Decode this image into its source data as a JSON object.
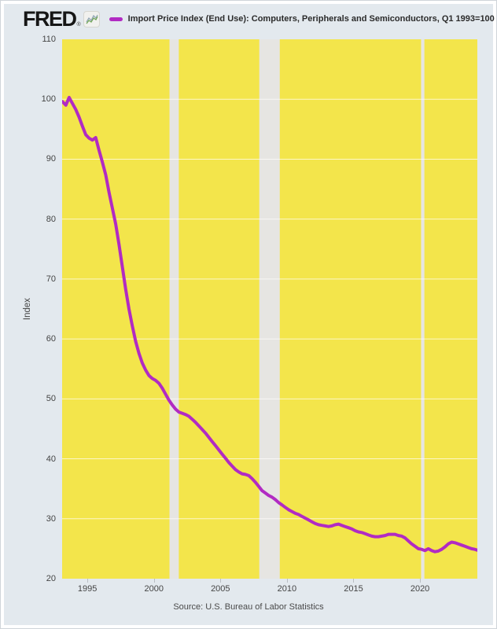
{
  "header": {
    "logo_text": "FRED",
    "logo_reg": "®",
    "fred_icon": "sparkline-chart"
  },
  "footer": {
    "source": "Source: U.S. Bureau of Labor Statistics"
  },
  "chart_data": {
    "type": "line",
    "title": "Import Price Index (End Use): Computers, Peripherals and Semiconductors, Q1 1993=100",
    "xlabel": "",
    "ylabel": "Index",
    "ylim": [
      20,
      110
    ],
    "xlim": [
      1993.1,
      2024.31
    ],
    "y_ticks": [
      20,
      30,
      40,
      50,
      60,
      70,
      80,
      90,
      100,
      110
    ],
    "x_ticks": [
      1995,
      2000,
      2005,
      2010,
      2015,
      2020
    ],
    "grid": "horizontal-white-lines",
    "legend_position": "top",
    "plot_bg_color": "#f3e54b",
    "recession_band_color": "#e6e5e2",
    "grid_color": "rgba(255,255,255,0.7)",
    "line_color": "#b12bc3",
    "recessions": [
      {
        "label": "2001 recession",
        "start": 2001.17,
        "end": 2001.87
      },
      {
        "label": "2007-2009 recession",
        "start": 2007.92,
        "end": 2009.46
      },
      {
        "label": "2020 recession",
        "start": 2020.08,
        "end": 2020.33
      }
    ],
    "series": [
      {
        "name": "Import Price Index (End Use): Computers, Peripherals and Semiconductors, Q1 1993=100",
        "frequency": "quarterly",
        "x_start": 1993.125,
        "x_step": 0.25,
        "values": [
          99.6,
          99.0,
          100.3,
          99.3,
          98.3,
          97.0,
          95.5,
          94.1,
          93.5,
          93.2,
          93.6,
          91.5,
          89.5,
          87.4,
          84.5,
          81.8,
          79.2,
          75.8,
          72.0,
          68.3,
          65.0,
          62.2,
          59.6,
          57.6,
          56.0,
          54.8,
          53.9,
          53.4,
          53.1,
          52.6,
          51.8,
          50.8,
          49.8,
          49.0,
          48.3,
          47.8,
          47.6,
          47.4,
          47.1,
          46.6,
          46.1,
          45.5,
          44.9,
          44.3,
          43.6,
          42.9,
          42.2,
          41.5,
          40.8,
          40.1,
          39.4,
          38.8,
          38.2,
          37.8,
          37.5,
          37.4,
          37.2,
          36.7,
          36.1,
          35.4,
          34.7,
          34.3,
          33.9,
          33.6,
          33.2,
          32.7,
          32.3,
          31.9,
          31.5,
          31.2,
          30.9,
          30.7,
          30.4,
          30.1,
          29.8,
          29.5,
          29.2,
          29.0,
          28.9,
          28.8,
          28.7,
          28.8,
          29.0,
          29.1,
          28.9,
          28.7,
          28.5,
          28.3,
          28.0,
          27.8,
          27.7,
          27.5,
          27.3,
          27.1,
          27.0,
          27.0,
          27.1,
          27.2,
          27.4,
          27.4,
          27.4,
          27.2,
          27.1,
          26.8,
          26.3,
          25.8,
          25.4,
          25.0,
          24.9,
          24.7,
          25.0,
          24.7,
          24.5,
          24.6,
          24.9,
          25.3,
          25.8,
          26.1,
          26.0,
          25.8,
          25.6,
          25.4,
          25.2,
          25.0,
          24.9,
          24.7
        ]
      }
    ]
  }
}
